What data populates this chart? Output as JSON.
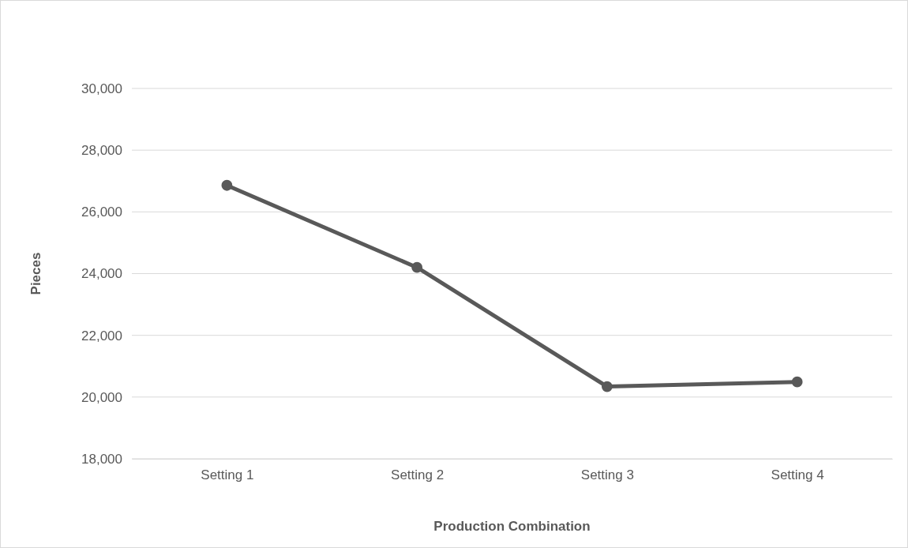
{
  "chart_data": {
    "type": "line",
    "xlabel": "Production Combination",
    "ylabel": "Pieces",
    "categories": [
      "Setting 1",
      "Setting 2",
      "Setting 3",
      "Setting 4"
    ],
    "series": [
      {
        "color": "#595959",
        "values": [
          26860,
          24200,
          20340,
          20490
        ]
      }
    ],
    "ylim": [
      18000,
      30000
    ],
    "yticks": [
      {
        "value": 18000,
        "label": "18,000"
      },
      {
        "value": 20000,
        "label": "20,000"
      },
      {
        "value": 22000,
        "label": "22,000"
      },
      {
        "value": 24000,
        "label": "24,000"
      },
      {
        "value": 26000,
        "label": "26,000"
      },
      {
        "value": 28000,
        "label": "28,000"
      },
      {
        "value": 30000,
        "label": "30,000"
      }
    ],
    "grid": "y",
    "marker": "circle",
    "line_style": "solid"
  }
}
